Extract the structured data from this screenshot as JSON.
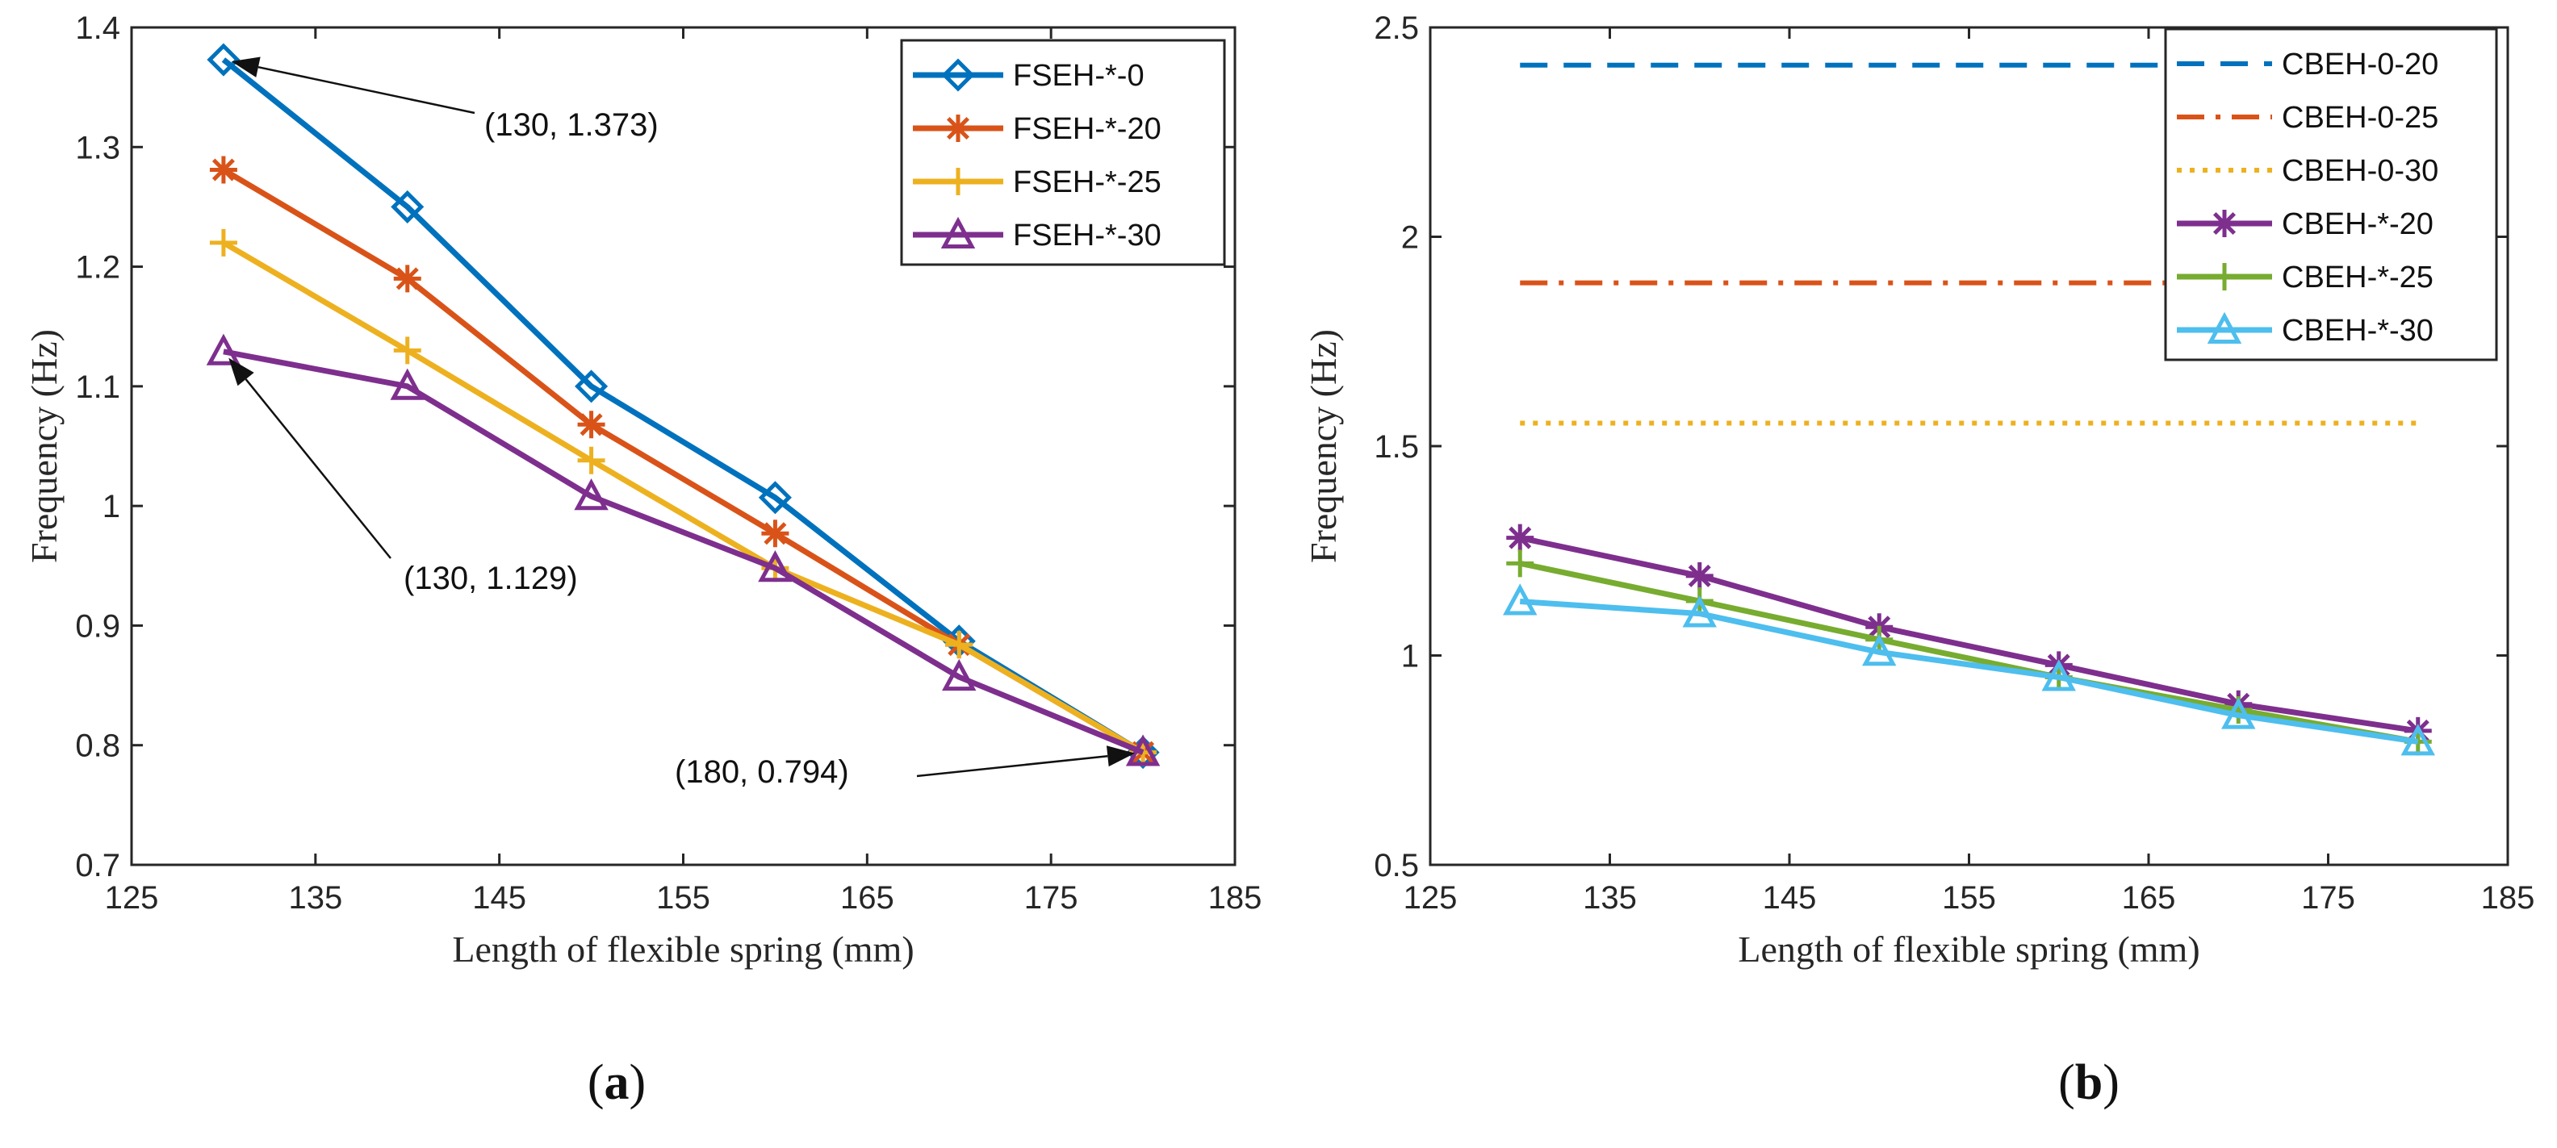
{
  "chart_data": [
    {
      "panel": "(a)",
      "panel_letter": "a",
      "type": "line",
      "xlabel": "Length of flexible spring (mm)",
      "ylabel": "Frequency (Hz)",
      "xlim": [
        125,
        185
      ],
      "ylim": [
        0.7,
        1.4
      ],
      "xticks": [
        125,
        135,
        145,
        155,
        165,
        175,
        185
      ],
      "yticks": [
        0.7,
        0.8,
        0.9,
        1,
        1.1,
        1.2,
        1.3,
        1.4
      ],
      "x": [
        130,
        140,
        150,
        160,
        170,
        180
      ],
      "legend_position": "top-right",
      "series": [
        {
          "name": "FSEH-*-0",
          "values": [
            1.373,
            1.25,
            1.1,
            1.007,
            0.887,
            0.794
          ],
          "color": "#0072BD",
          "marker": "diamond"
        },
        {
          "name": "FSEH-*-20",
          "values": [
            1.281,
            1.19,
            1.068,
            0.977,
            0.884,
            0.794
          ],
          "color": "#D95319",
          "marker": "asterisk"
        },
        {
          "name": "FSEH-*-25",
          "values": [
            1.22,
            1.13,
            1.038,
            0.948,
            0.884,
            0.794
          ],
          "color": "#EDB120",
          "marker": "plus"
        },
        {
          "name": "FSEH-*-30",
          "values": [
            1.129,
            1.1,
            1.008,
            0.948,
            0.857,
            0.794
          ],
          "color": "#7E2F8E",
          "marker": "triangle"
        }
      ],
      "annotations": [
        {
          "text": "(130, 1.373)",
          "point": [
            130,
            1.373
          ]
        },
        {
          "text": "(130, 1.129)",
          "point": [
            130,
            1.129
          ]
        },
        {
          "text": "(180, 0.794)",
          "point": [
            180,
            0.794
          ]
        }
      ]
    },
    {
      "panel": "(b)",
      "panel_letter": "b",
      "type": "line",
      "xlabel": "Length of flexible spring (mm)",
      "ylabel": "Frequency (Hz)",
      "xlim": [
        125,
        185
      ],
      "ylim": [
        0.5,
        2.5
      ],
      "xticks": [
        125,
        135,
        145,
        155,
        165,
        175,
        185
      ],
      "yticks": [
        0.5,
        1,
        1.5,
        2,
        2.5
      ],
      "x": [
        130,
        140,
        150,
        160,
        170,
        180
      ],
      "legend_position": "top-right",
      "series": [
        {
          "name": "CBEH-0-20",
          "values": [
            2.41,
            2.41,
            2.41,
            2.41,
            2.41,
            2.41
          ],
          "color": "#0072BD",
          "line_style": "dashed"
        },
        {
          "name": "CBEH-0-25",
          "values": [
            1.89,
            1.89,
            1.89,
            1.89,
            1.89,
            1.89
          ],
          "color": "#D95319",
          "line_style": "dash-dot"
        },
        {
          "name": "CBEH-0-30",
          "values": [
            1.555,
            1.555,
            1.555,
            1.555,
            1.555,
            1.555
          ],
          "color": "#EDB120",
          "line_style": "dotted"
        },
        {
          "name": "CBEH-*-20",
          "values": [
            1.281,
            1.19,
            1.068,
            0.977,
            0.884,
            0.82
          ],
          "color": "#7E2F8E",
          "marker": "asterisk"
        },
        {
          "name": "CBEH-*-25",
          "values": [
            1.22,
            1.13,
            1.038,
            0.948,
            0.87,
            0.794
          ],
          "color": "#77AC30",
          "marker": "plus"
        },
        {
          "name": "CBEH-*-30",
          "values": [
            1.129,
            1.1,
            1.008,
            0.948,
            0.857,
            0.794
          ],
          "color": "#4DBEEE",
          "marker": "triangle"
        }
      ]
    }
  ]
}
